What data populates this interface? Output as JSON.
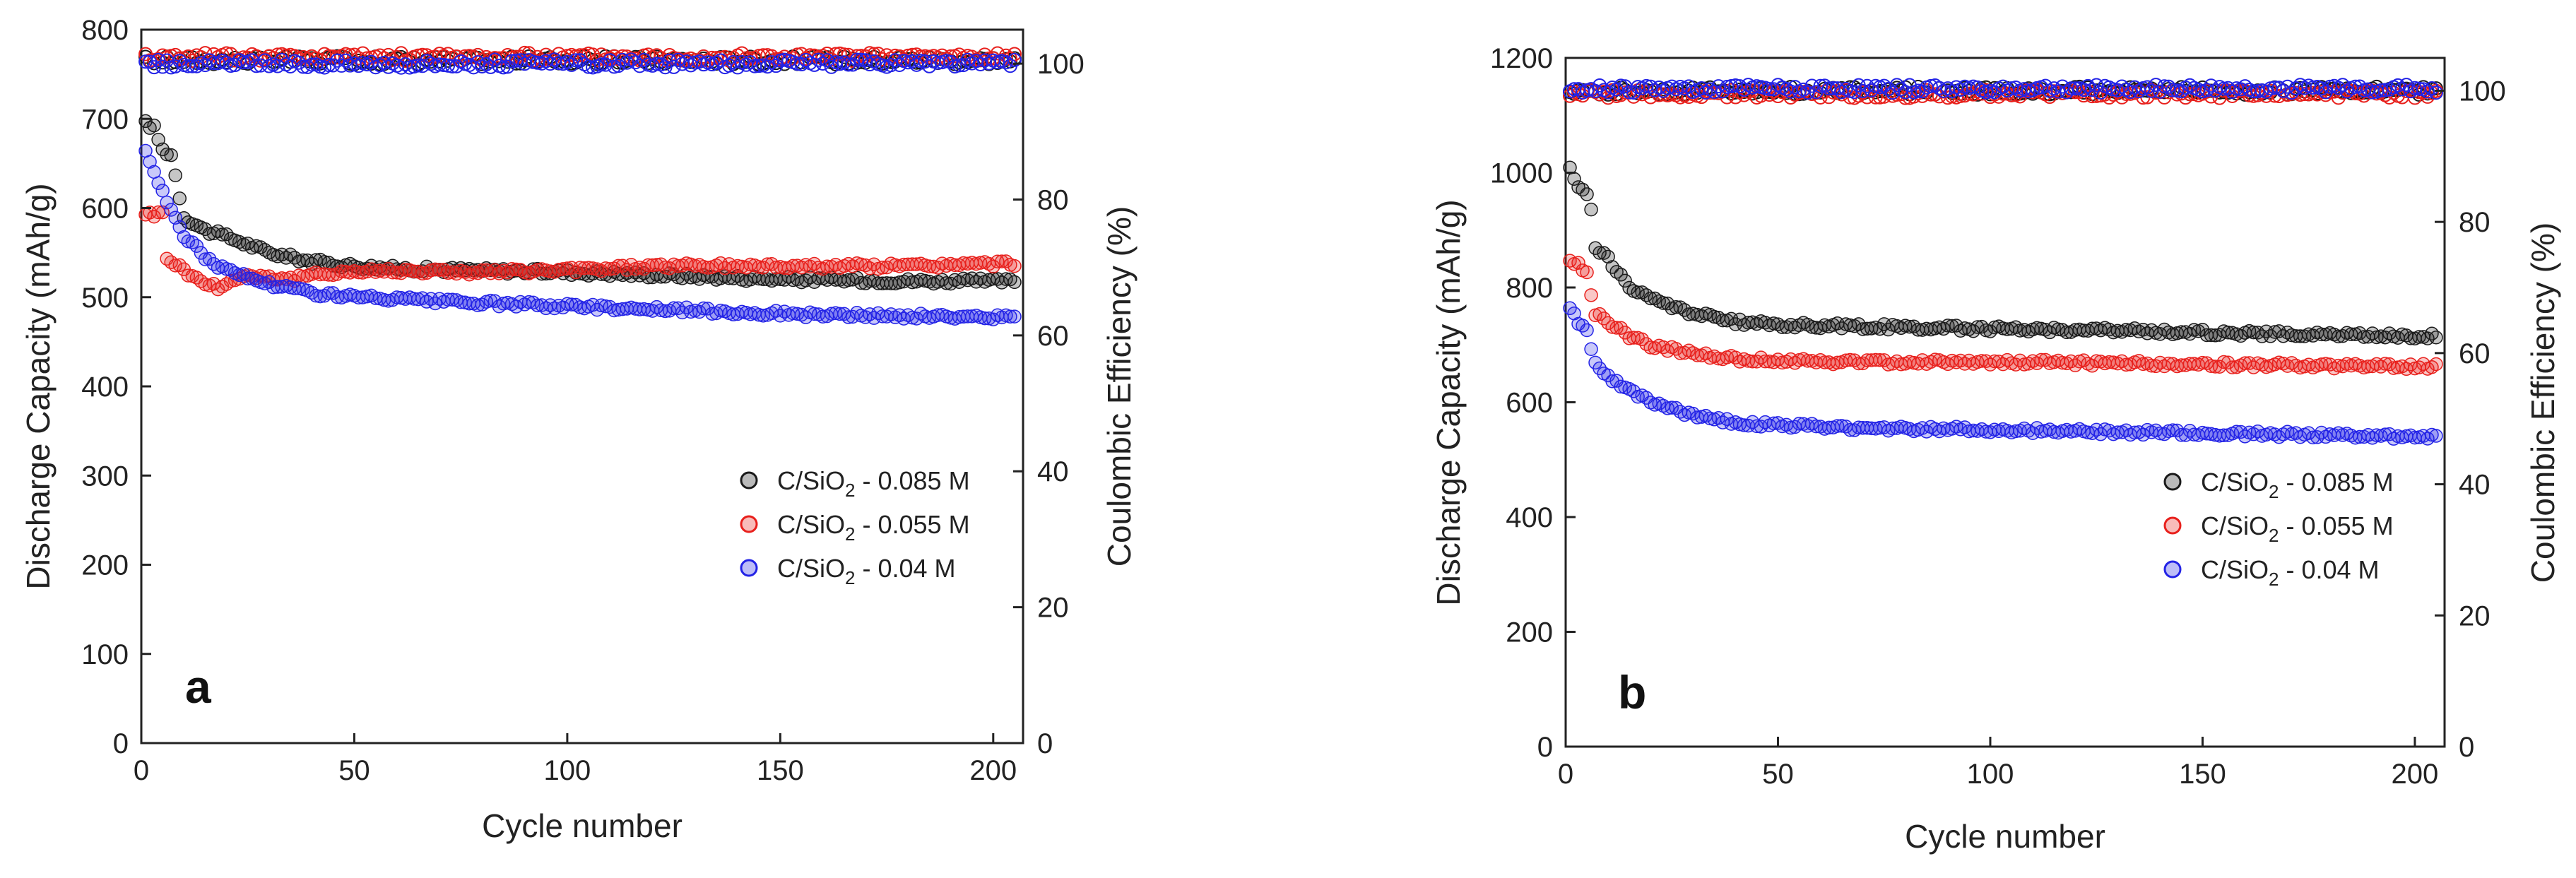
{
  "chart_data": [
    {
      "panel": "a",
      "type": "scatter",
      "title": "",
      "xlabel": "Cycle number",
      "ylabel": "Discharge Capacity (mAh/g)",
      "y2label": "Coulombic Efficiency (%)",
      "xlim": [
        0,
        207
      ],
      "ylim": [
        0,
        800
      ],
      "y2lim": [
        0,
        105
      ],
      "xticks": [
        0,
        50,
        100,
        150,
        200
      ],
      "yticks": [
        0,
        100,
        200,
        300,
        400,
        500,
        600,
        700,
        800
      ],
      "y2ticks": [
        0,
        20,
        40,
        60,
        80,
        100
      ],
      "legend_position": "lower-right",
      "series": [
        {
          "name": "C/SiO₂ - 0.085 M",
          "name_main": "C/SiO",
          "name_sub": "2",
          "name_tail": " - 0.085 M",
          "color": "#1a1a1a",
          "capacity_key": [
            [
              1,
              695
            ],
            [
              3,
              690
            ],
            [
              5,
              665
            ],
            [
              7,
              660
            ],
            [
              10,
              590
            ],
            [
              15,
              575
            ],
            [
              20,
              568
            ],
            [
              30,
              550
            ],
            [
              40,
              540
            ],
            [
              50,
              535
            ],
            [
              60,
              532
            ],
            [
              80,
              530
            ],
            [
              100,
              528
            ],
            [
              120,
              525
            ],
            [
              150,
              520
            ],
            [
              180,
              518
            ],
            [
              205,
              518
            ]
          ],
          "ce": 100.5
        },
        {
          "name": "C/SiO₂ - 0.055 M",
          "name_main": "C/SiO",
          "name_sub": "2",
          "name_tail": " - 0.055 M",
          "color": "#e8201c",
          "capacity_key": [
            [
              1,
              595
            ],
            [
              3,
              592
            ],
            [
              5,
              595
            ],
            [
              6,
              545
            ],
            [
              10,
              530
            ],
            [
              15,
              515
            ],
            [
              18,
              512
            ],
            [
              25,
              525
            ],
            [
              35,
              520
            ],
            [
              45,
              528
            ],
            [
              60,
              530
            ],
            [
              80,
              528
            ],
            [
              100,
              530
            ],
            [
              120,
              535
            ],
            [
              150,
              535
            ],
            [
              180,
              535
            ],
            [
              205,
              538
            ]
          ],
          "ce": 101
        },
        {
          "name": "C/SiO₂ - 0.04 M",
          "name_main": "C/SiO",
          "name_sub": "2",
          "name_tail": " - 0.04 M",
          "color": "#2323e6",
          "capacity_key": [
            [
              1,
              665
            ],
            [
              3,
              640
            ],
            [
              5,
              620
            ],
            [
              7,
              595
            ],
            [
              10,
              570
            ],
            [
              15,
              545
            ],
            [
              20,
              530
            ],
            [
              30,
              515
            ],
            [
              40,
              505
            ],
            [
              50,
              500
            ],
            [
              70,
              495
            ],
            [
              100,
              490
            ],
            [
              130,
              485
            ],
            [
              160,
              480
            ],
            [
              205,
              477
            ]
          ],
          "ce": 100
        }
      ]
    },
    {
      "panel": "b",
      "type": "scatter",
      "title": "",
      "xlabel": "Cycle number",
      "ylabel": "Discharge Capacity (mAh/g)",
      "y2label": "Coulombic Efficiency (%)",
      "xlim": [
        0,
        207
      ],
      "ylim": [
        0,
        1200
      ],
      "y2lim": [
        0,
        105
      ],
      "xticks": [
        0,
        50,
        100,
        150,
        200
      ],
      "yticks": [
        0,
        200,
        400,
        600,
        800,
        1000,
        1200
      ],
      "y2ticks": [
        0,
        20,
        40,
        60,
        80,
        100
      ],
      "legend_position": "lower-right",
      "series": [
        {
          "name": "C/SiO₂ - 0.085 M",
          "name_main": "C/SiO",
          "name_sub": "2",
          "name_tail": " - 0.085 M",
          "color": "#1a1a1a",
          "capacity_key": [
            [
              1,
              1005
            ],
            [
              3,
              975
            ],
            [
              5,
              960
            ],
            [
              6,
              940
            ],
            [
              7,
              870
            ],
            [
              10,
              850
            ],
            [
              15,
              800
            ],
            [
              20,
              780
            ],
            [
              30,
              755
            ],
            [
              40,
              740
            ],
            [
              50,
              735
            ],
            [
              70,
              732
            ],
            [
              100,
              728
            ],
            [
              130,
              725
            ],
            [
              160,
              720
            ],
            [
              205,
              715
            ]
          ],
          "ce": 100
        },
        {
          "name": "C/SiO₂ - 0.055 M",
          "name_main": "C/SiO",
          "name_sub": "2",
          "name_tail": " - 0.055 M",
          "color": "#e8201c",
          "capacity_key": [
            [
              1,
              850
            ],
            [
              3,
              840
            ],
            [
              5,
              825
            ],
            [
              7,
              755
            ],
            [
              10,
              740
            ],
            [
              15,
              715
            ],
            [
              20,
              700
            ],
            [
              30,
              685
            ],
            [
              40,
              675
            ],
            [
              50,
              672
            ],
            [
              70,
              670
            ],
            [
              100,
              670
            ],
            [
              130,
              668
            ],
            [
              160,
              665
            ],
            [
              205,
              662
            ]
          ],
          "ce": 99.5
        },
        {
          "name": "C/SiO₂ - 0.04 M",
          "name_main": "C/SiO",
          "name_sub": "2",
          "name_tail": " - 0.04 M",
          "color": "#2323e6",
          "capacity_key": [
            [
              1,
              765
            ],
            [
              3,
              740
            ],
            [
              5,
              725
            ],
            [
              7,
              665
            ],
            [
              10,
              645
            ],
            [
              15,
              620
            ],
            [
              20,
              600
            ],
            [
              30,
              578
            ],
            [
              40,
              565
            ],
            [
              50,
              560
            ],
            [
              70,
              555
            ],
            [
              100,
              552
            ],
            [
              130,
              548
            ],
            [
              160,
              545
            ],
            [
              205,
              540
            ]
          ],
          "ce": 100.3
        }
      ]
    }
  ]
}
